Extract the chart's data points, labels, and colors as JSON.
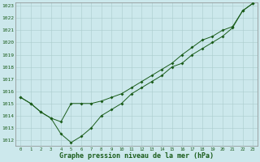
{
  "title": "Graphe pression niveau de la mer (hPa)",
  "background_color": "#cce8ec",
  "grid_color": "#aacccc",
  "line_color": "#1a5c1a",
  "x_ticks": [
    0,
    1,
    2,
    3,
    4,
    5,
    6,
    7,
    8,
    9,
    10,
    11,
    12,
    13,
    14,
    15,
    16,
    17,
    18,
    19,
    20,
    21,
    22,
    23
  ],
  "y_min": 1012,
  "y_max": 1023,
  "series1": [
    1015.5,
    1015.0,
    1014.3,
    1013.8,
    1013.5,
    1015.0,
    1015.0,
    1015.0,
    1015.2,
    1015.5,
    1015.8,
    1016.3,
    1016.8,
    1017.3,
    1017.8,
    1018.3,
    1019.0,
    1019.6,
    1020.2,
    1020.5,
    1021.0,
    1021.3,
    1022.6,
    1023.2
  ],
  "series2": [
    1015.5,
    1015.0,
    1014.3,
    1013.8,
    1012.5,
    1011.8,
    1012.3,
    1013.0,
    1014.0,
    1014.5,
    1015.0,
    1015.8,
    1016.3,
    1016.8,
    1017.3,
    1018.0,
    1018.3,
    1019.0,
    1019.5,
    1020.0,
    1020.5,
    1021.2,
    1022.6,
    1023.2
  ],
  "figwidth": 3.2,
  "figheight": 2.0,
  "dpi": 100
}
